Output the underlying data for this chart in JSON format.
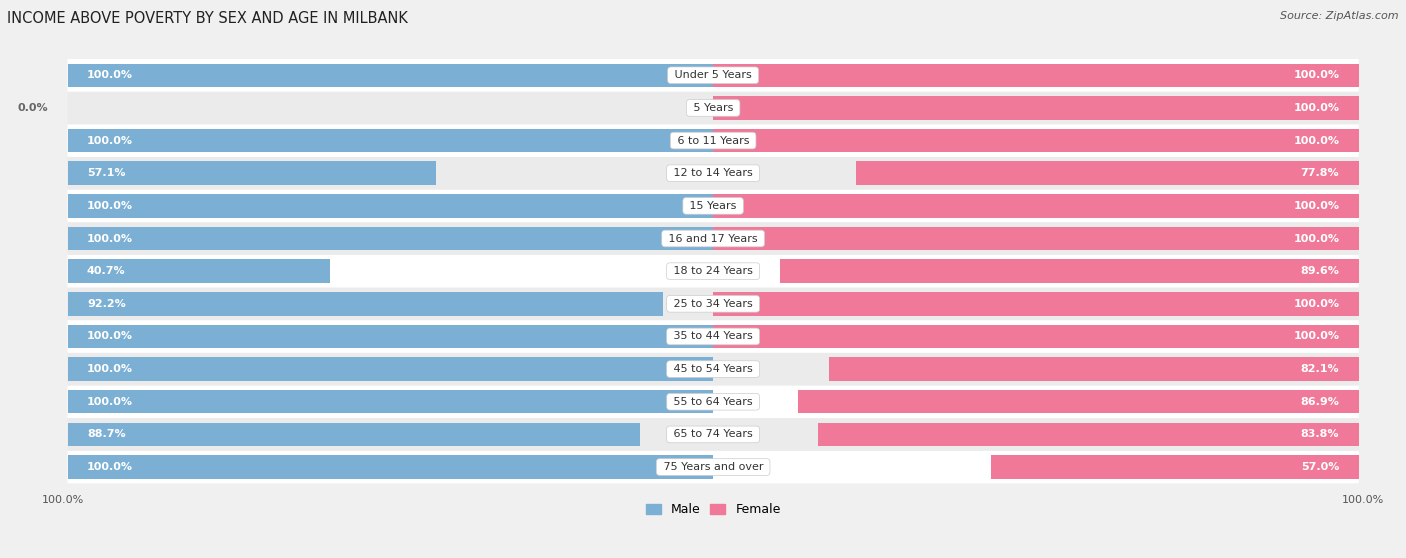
{
  "title": "INCOME ABOVE POVERTY BY SEX AND AGE IN MILBANK",
  "source": "Source: ZipAtlas.com",
  "categories": [
    "Under 5 Years",
    "5 Years",
    "6 to 11 Years",
    "12 to 14 Years",
    "15 Years",
    "16 and 17 Years",
    "18 to 24 Years",
    "25 to 34 Years",
    "35 to 44 Years",
    "45 to 54 Years",
    "55 to 64 Years",
    "65 to 74 Years",
    "75 Years and over"
  ],
  "male_values": [
    100.0,
    0.0,
    100.0,
    57.1,
    100.0,
    100.0,
    40.7,
    92.2,
    100.0,
    100.0,
    100.0,
    88.7,
    100.0
  ],
  "female_values": [
    100.0,
    100.0,
    100.0,
    77.8,
    100.0,
    100.0,
    89.6,
    100.0,
    100.0,
    82.1,
    86.9,
    83.8,
    57.0
  ],
  "male_color": "#7bafd4",
  "female_color": "#f07898",
  "male_label": "Male",
  "female_label": "Female",
  "bg_color": "#f0f0f0",
  "row_color_even": "#ffffff",
  "row_color_odd": "#ebebeb",
  "title_fontsize": 10.5,
  "label_fontsize": 8,
  "value_fontsize": 8,
  "source_fontsize": 8
}
